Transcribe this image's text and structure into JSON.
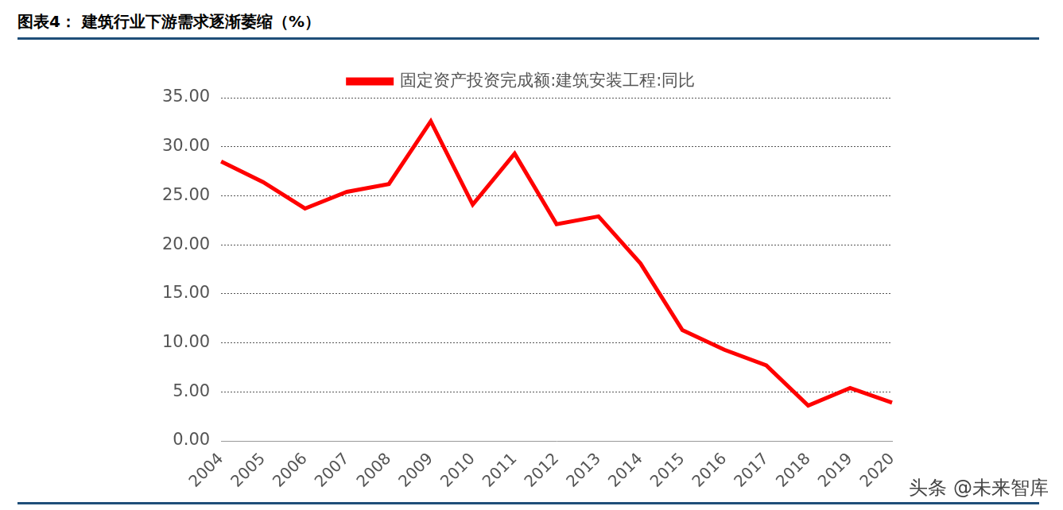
{
  "chart_data": {
    "type": "line",
    "title": "图表4： 建筑行业下游需求逐渐萎缩（%）",
    "watermark": "头条 @未来智库",
    "categories": [
      "2004",
      "2005",
      "2006",
      "2007",
      "2008",
      "2009",
      "2010",
      "2011",
      "2012",
      "2013",
      "2014",
      "2015",
      "2016",
      "2017",
      "2018",
      "2019",
      "2020"
    ],
    "series": [
      {
        "name": "固定资产投资完成额:建筑安装工程:同比",
        "color": "#ff0000",
        "values": [
          28.5,
          26.4,
          23.7,
          25.4,
          26.2,
          32.6,
          24.1,
          29.3,
          22.1,
          22.9,
          18.1,
          11.3,
          9.3,
          7.7,
          3.6,
          5.4,
          3.9
        ]
      }
    ],
    "ylim": [
      0,
      35
    ],
    "yticks": [
      {
        "value": 0,
        "label": "0.00"
      },
      {
        "value": 5,
        "label": "5.00"
      },
      {
        "value": 10,
        "label": "10.00"
      },
      {
        "value": 15,
        "label": "15.00"
      },
      {
        "value": 20,
        "label": "20.00"
      },
      {
        "value": 25,
        "label": "25.00"
      },
      {
        "value": 30,
        "label": "30.00"
      },
      {
        "value": 35,
        "label": "35.00"
      }
    ],
    "grid": true,
    "legend": "top"
  }
}
